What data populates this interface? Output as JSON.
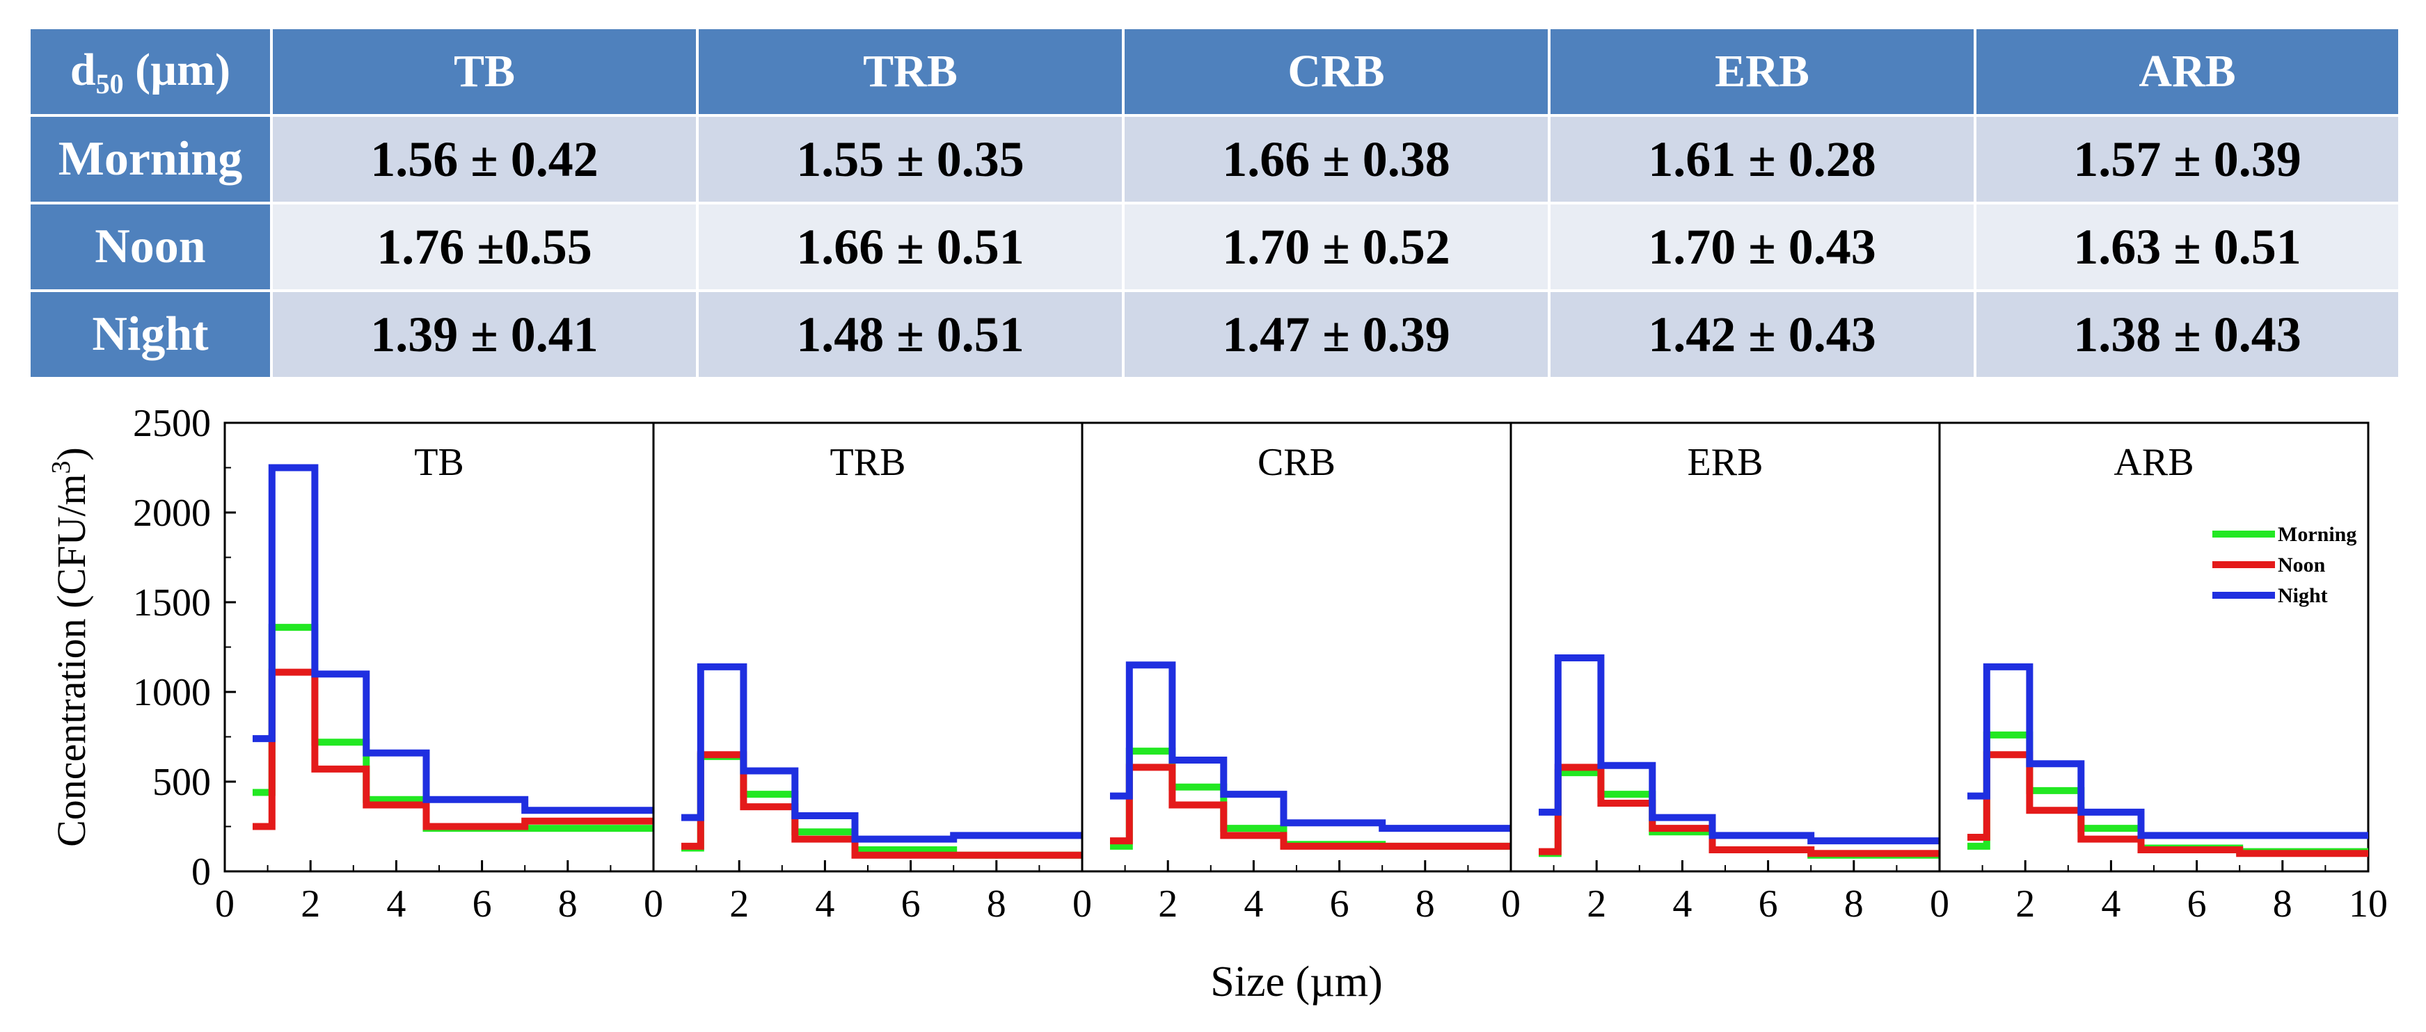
{
  "table": {
    "corner": {
      "base": "d",
      "sub": "50",
      "tail": " (µm)"
    },
    "columns": [
      "TB",
      "TRB",
      "CRB",
      "ERB",
      "ARB"
    ],
    "rows": [
      {
        "label": "Morning",
        "values": [
          "1.56 ± 0.42",
          "1.55 ± 0.35",
          "1.66 ± 0.38",
          "1.61 ± 0.28",
          "1.57 ± 0.39"
        ]
      },
      {
        "label": "Noon",
        "values": [
          "1.76 ±0.55",
          "1.66 ± 0.51",
          "1.70 ± 0.52",
          "1.70 ± 0.43",
          "1.63 ± 0.51"
        ]
      },
      {
        "label": "Night",
        "values": [
          "1.39 ± 0.41",
          "1.48 ± 0.51",
          "1.47 ± 0.39",
          "1.42 ± 0.43",
          "1.38 ± 0.43"
        ]
      }
    ]
  },
  "chart_data": {
    "type": "line",
    "step": true,
    "ylabel": "Concentration (CFU/m3)",
    "ylabel_main": "Concentration (CFU/m",
    "ylabel_sup": "3",
    "ylabel_close": ")",
    "xlabel": "Size (µm)",
    "ylim": [
      0,
      2500
    ],
    "yticks": [
      0,
      500,
      1000,
      1500,
      2000,
      2500
    ],
    "xlim": [
      0,
      10
    ],
    "xticks_panel": [
      0,
      2,
      4,
      6,
      8
    ],
    "xticks_last": [
      0,
      2,
      4,
      6,
      8,
      10
    ],
    "bin_edges": [
      0.65,
      1.1,
      2.1,
      3.3,
      4.7,
      7.0,
      10
    ],
    "legend_position": "top-right",
    "legend_panel": "ARB",
    "colors": {
      "Morning": "#22e822",
      "Noon": "#e41a1a",
      "Night": "#1f2fe0"
    },
    "panels": [
      {
        "title": "TB",
        "series": [
          {
            "name": "Morning",
            "values": [
              440,
              1360,
              720,
              400,
              240,
              240
            ]
          },
          {
            "name": "Noon",
            "values": [
              250,
              1110,
              570,
              370,
              250,
              280
            ]
          },
          {
            "name": "Night",
            "values": [
              740,
              2250,
              1100,
              660,
              400,
              340
            ]
          }
        ]
      },
      {
        "title": "TRB",
        "series": [
          {
            "name": "Morning",
            "values": [
              130,
              640,
              430,
              220,
              120,
              90
            ]
          },
          {
            "name": "Noon",
            "values": [
              140,
              650,
              360,
              180,
              90,
              90
            ]
          },
          {
            "name": "Night",
            "values": [
              300,
              1140,
              560,
              310,
              180,
              200
            ]
          }
        ]
      },
      {
        "title": "CRB",
        "series": [
          {
            "name": "Morning",
            "values": [
              140,
              670,
              470,
              240,
              150,
              140
            ]
          },
          {
            "name": "Noon",
            "values": [
              170,
              580,
              370,
              200,
              140,
              140
            ]
          },
          {
            "name": "Night",
            "values": [
              420,
              1150,
              620,
              430,
              270,
              240
            ]
          }
        ]
      },
      {
        "title": "ERB",
        "series": [
          {
            "name": "Morning",
            "values": [
              100,
              550,
              430,
              220,
              120,
              90
            ]
          },
          {
            "name": "Noon",
            "values": [
              110,
              580,
              380,
              240,
              120,
              100
            ]
          },
          {
            "name": "Night",
            "values": [
              330,
              1190,
              590,
              300,
              200,
              170
            ]
          }
        ]
      },
      {
        "title": "ARB",
        "series": [
          {
            "name": "Morning",
            "values": [
              140,
              760,
              450,
              240,
              130,
              110
            ]
          },
          {
            "name": "Noon",
            "values": [
              190,
              650,
              340,
              180,
              120,
              100
            ]
          },
          {
            "name": "Night",
            "values": [
              420,
              1140,
              600,
              330,
              200,
              200
            ]
          }
        ]
      }
    ]
  }
}
